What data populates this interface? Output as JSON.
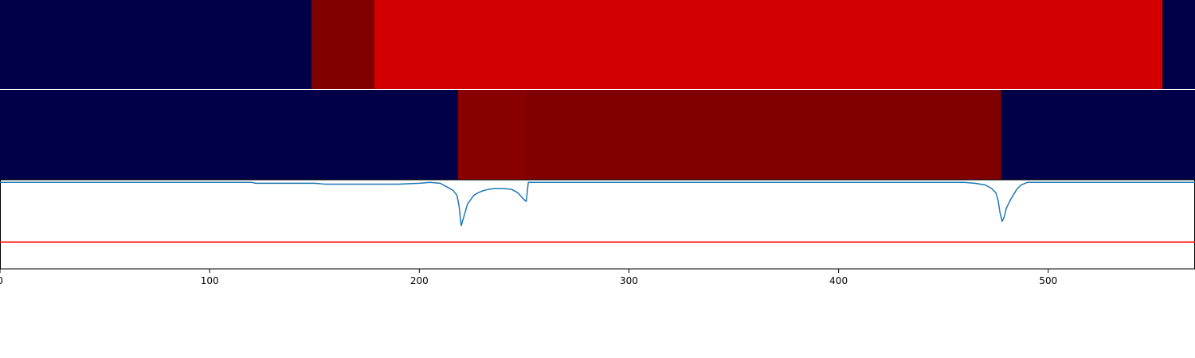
{
  "chart_data": [
    {
      "type": "heatmap",
      "row": "top",
      "x_range": [
        0,
        570
      ],
      "segments": [
        {
          "start": 0,
          "end": 148.5,
          "color": "#000048"
        },
        {
          "start": 148.5,
          "end": 178.5,
          "color": "#800000"
        },
        {
          "start": 178.5,
          "end": 554.5,
          "color": "#d20000"
        },
        {
          "start": 554.5,
          "end": 570,
          "color": "#000048"
        }
      ]
    },
    {
      "type": "heatmap",
      "row": "middle",
      "x_range": [
        0,
        570
      ],
      "segments": [
        {
          "start": 0,
          "end": 218.5,
          "color": "#000048"
        },
        {
          "start": 218.5,
          "end": 251.0,
          "color": "#890000"
        },
        {
          "start": 251.0,
          "end": 477.5,
          "color": "#800000"
        },
        {
          "start": 477.5,
          "end": 570,
          "color": "#000048"
        }
      ]
    },
    {
      "type": "line",
      "xlim": [
        0,
        570
      ],
      "ylim": [
        -1,
        0.03
      ],
      "grid": false,
      "xticks": [
        0,
        100,
        200,
        300,
        400,
        500
      ],
      "threshold": {
        "value": -0.69,
        "color": "#ff0000"
      },
      "series": [
        {
          "color": "#1f77b4",
          "x": [
            0,
            60,
            120,
            122,
            150,
            155,
            180,
            190,
            200,
            205,
            210,
            213,
            216,
            218,
            219,
            220,
            223,
            226,
            228,
            230,
            233,
            236,
            240,
            244,
            247,
            250,
            251,
            252,
            300,
            400,
            450,
            460,
            465,
            470,
            473,
            475,
            476,
            477,
            478,
            479,
            480,
            482,
            484,
            485,
            487,
            490,
            500,
            570
          ],
          "y": [
            0,
            0,
            0,
            -0.01,
            -0.01,
            -0.02,
            -0.02,
            -0.02,
            -0.01,
            0,
            -0.01,
            -0.05,
            -0.09,
            -0.15,
            -0.28,
            -0.5,
            -0.25,
            -0.15,
            -0.12,
            -0.1,
            -0.08,
            -0.07,
            -0.07,
            -0.08,
            -0.12,
            -0.2,
            -0.22,
            0,
            0,
            0,
            0,
            0,
            -0.01,
            -0.03,
            -0.07,
            -0.12,
            -0.2,
            -0.35,
            -0.45,
            -0.4,
            -0.3,
            -0.2,
            -0.12,
            -0.08,
            -0.03,
            0,
            0,
            0
          ]
        }
      ]
    }
  ]
}
